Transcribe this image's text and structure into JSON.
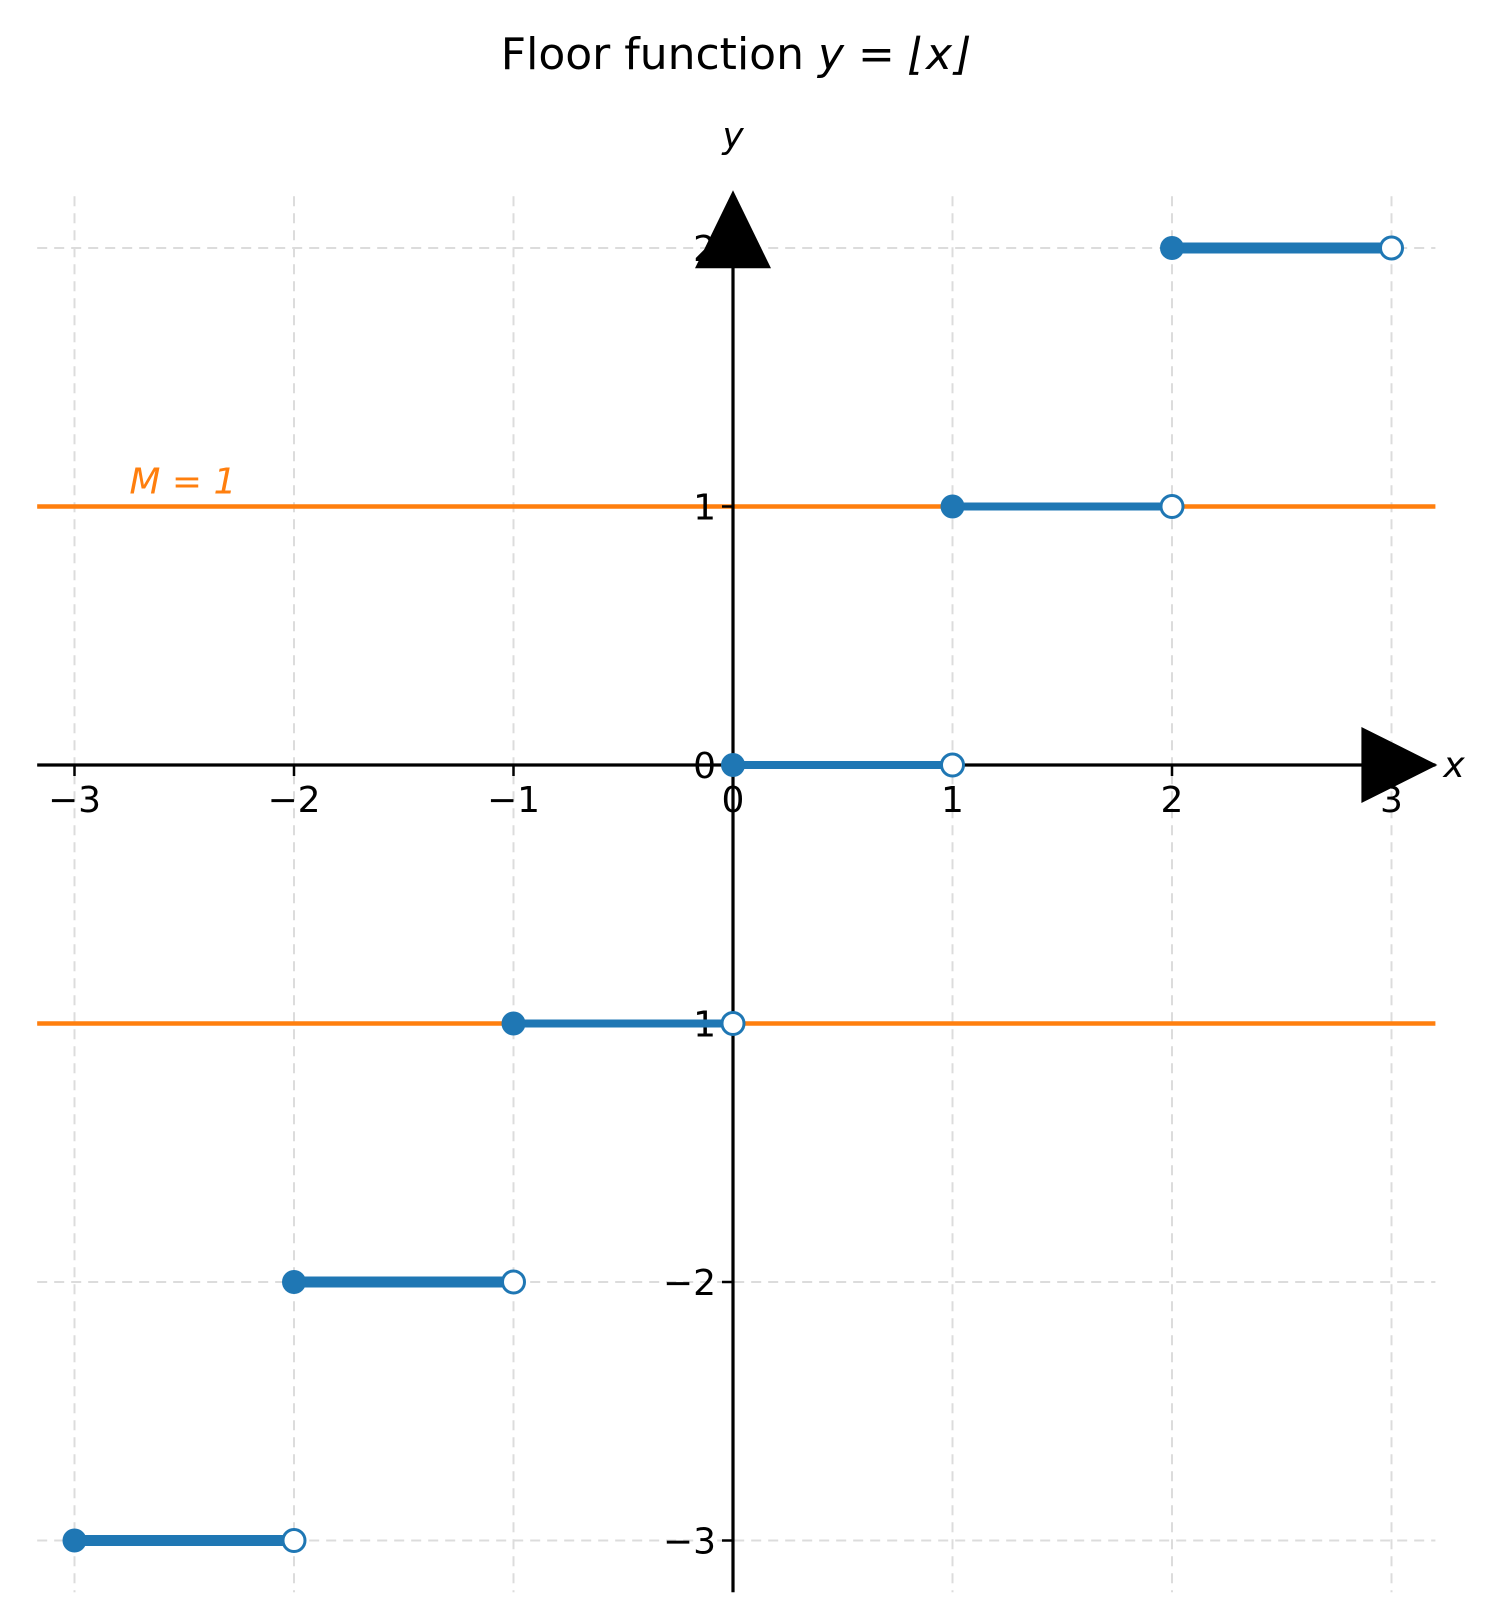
{
  "chart_data": {
    "type": "line",
    "title": {
      "prefix": "Floor function ",
      "math": "y = ⌊x⌋"
    },
    "xlabel": "x",
    "ylabel": "y",
    "xlim": [
      -3.17,
      3.2
    ],
    "ylim": [
      -3.2,
      2.2
    ],
    "xticks": [
      -3,
      -2,
      -1,
      0,
      1,
      2,
      3
    ],
    "yticks": [
      -3,
      -2,
      -1,
      0,
      1,
      2
    ],
    "xtick_labels": [
      "−3",
      "−2",
      "−1",
      "0",
      "1",
      "2",
      "3"
    ],
    "ytick_labels": [
      "−3",
      "−2",
      "−1",
      "0",
      "1",
      "2"
    ],
    "grid": true,
    "series": [
      {
        "color": "#1f77b4",
        "segments": [
          {
            "x_start": -3,
            "x_end": -2,
            "y": -3
          },
          {
            "x_start": -2,
            "x_end": -1,
            "y": -2
          },
          {
            "x_start": -1,
            "x_end": 0,
            "y": -1
          },
          {
            "x_start": 0,
            "x_end": 1,
            "y": 0
          },
          {
            "x_start": 1,
            "x_end": 2,
            "y": 1
          },
          {
            "x_start": 2,
            "x_end": 3,
            "y": 2
          }
        ],
        "closed_endpoint": "left",
        "open_endpoint": "right"
      }
    ],
    "reference_lines": [
      {
        "y": 1,
        "color": "#ff7f0e"
      },
      {
        "y": -1,
        "color": "#ff7f0e"
      }
    ],
    "annotations": [
      {
        "text": "M = 1",
        "x": -2.75,
        "y": 1.1,
        "color": "#ff7f0e"
      }
    ]
  }
}
